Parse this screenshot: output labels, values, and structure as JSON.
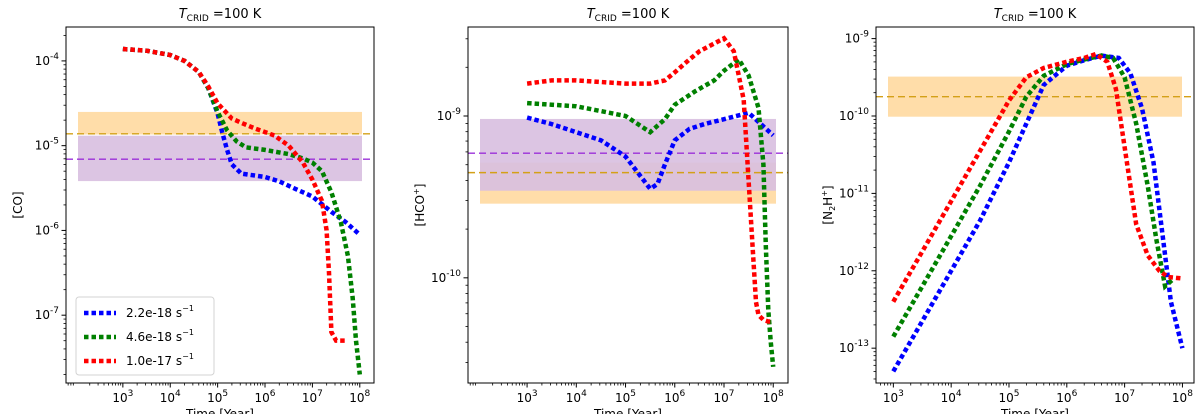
{
  "chart_data": [
    {
      "type": "line",
      "title_var": "T",
      "title_sub": "CRID",
      "title_rest": " =100 K",
      "xlabel": "Time [Year]",
      "ylabel": "[CO]",
      "xscale": "log",
      "yscale": "log",
      "xlim": [
        1.8,
        8.3
      ],
      "ylim": [
        -7.8,
        -3.6
      ],
      "xticks": [
        3,
        4,
        5,
        6,
        7,
        8
      ],
      "yticks": [
        -7,
        -6,
        -5,
        -4
      ],
      "legend": {
        "position": "lower-left",
        "entries": [
          "2.2e-18 s",
          "4.6e-18 s",
          "1.0e-17 s"
        ],
        "unit_sup": "−1"
      },
      "bands": [
        {
          "low": -4.75,
          "high": -4.72,
          "line": -4.86,
          "fill": "#ffd9a0",
          "line_color": "#d4a017"
        },
        {
          "low": -5.3,
          "high": -5.0,
          "line": -5.16,
          "fill": "#d8bfe0",
          "line_color": "#9b30d9"
        }
      ],
      "series": [
        {
          "name": "2.2e-18 s",
          "color": "#0000ff",
          "x": [
            3,
            3.5,
            4,
            4.3,
            4.6,
            4.8,
            5,
            5.1,
            5.2,
            5.3,
            5.5,
            6,
            6.3,
            6.6,
            7,
            7.4,
            7.7,
            8
          ],
          "y": [
            -3.86,
            -3.88,
            -3.93,
            -4.0,
            -4.13,
            -4.32,
            -4.62,
            -4.85,
            -5.05,
            -5.22,
            -5.33,
            -5.37,
            -5.42,
            -5.5,
            -5.6,
            -5.78,
            -5.9,
            -6.05
          ]
        },
        {
          "name": "4.6e-18 s",
          "color": "#008000",
          "x": [
            3,
            3.5,
            4,
            4.3,
            4.6,
            4.8,
            5,
            5.2,
            5.4,
            5.6,
            6,
            6.5,
            6.8,
            7,
            7.2,
            7.4,
            7.6,
            7.75,
            7.85,
            7.92,
            8
          ],
          "y": [
            -3.86,
            -3.88,
            -3.93,
            -4.0,
            -4.13,
            -4.32,
            -4.6,
            -4.82,
            -4.95,
            -5.02,
            -5.05,
            -5.1,
            -5.15,
            -5.2,
            -5.3,
            -5.55,
            -5.9,
            -6.3,
            -6.8,
            -7.3,
            -7.7
          ]
        },
        {
          "name": "1.0e-17 s",
          "color": "#ff0000",
          "x": [
            3,
            3.5,
            4,
            4.3,
            4.6,
            4.8,
            5,
            5.3,
            5.5,
            5.8,
            6.2,
            6.5,
            6.8,
            7,
            7.2,
            7.3,
            7.35,
            7.4,
            7.5,
            7.6,
            7.7
          ],
          "y": [
            -3.86,
            -3.88,
            -3.93,
            -4.0,
            -4.13,
            -4.3,
            -4.5,
            -4.68,
            -4.73,
            -4.8,
            -4.88,
            -5.0,
            -5.2,
            -5.4,
            -5.65,
            -6.0,
            -6.5,
            -7.2,
            -7.3,
            -7.3,
            -7.3
          ]
        }
      ]
    },
    {
      "type": "line",
      "title_var": "T",
      "title_sub": "CRID",
      "title_rest": " =100 K",
      "xlabel": "Time [Year]",
      "ylabel_base": "[HCO",
      "ylabel_sup": "+",
      "ylabel_end": "]",
      "xscale": "log",
      "yscale": "log",
      "xlim": [
        1.8,
        8.3
      ],
      "ylim": [
        -10.65,
        -8.45
      ],
      "xticks": [
        3,
        4,
        5,
        6,
        7,
        8
      ],
      "yticks": [
        -10,
        -9
      ],
      "bands": [
        {
          "low": -9.48,
          "high": -9.35,
          "line": -9.35,
          "fill": "#ffd9a0",
          "line_color": "#d4a017"
        },
        {
          "low": -9.4,
          "high": -9.08,
          "line": -9.23,
          "fill": "#d8bfe0",
          "line_color": "#9b30d9"
        }
      ],
      "series": [
        {
          "name": "2.2e-18 s",
          "color": "#0000ff",
          "x": [
            3,
            3.5,
            4,
            4.5,
            5,
            5.3,
            5.5,
            5.65,
            5.8,
            6,
            6.3,
            6.6,
            7,
            7.5,
            8
          ],
          "y": [
            -9.01,
            -9.05,
            -9.1,
            -9.15,
            -9.25,
            -9.37,
            -9.45,
            -9.42,
            -9.3,
            -9.15,
            -9.08,
            -9.05,
            -9.02,
            -8.98,
            -9.12
          ]
        },
        {
          "name": "4.6e-18 s",
          "color": "#008000",
          "x": [
            3,
            3.5,
            4,
            4.5,
            5,
            5.3,
            5.5,
            5.8,
            6,
            6.4,
            6.8,
            7,
            7.3,
            7.5,
            7.7,
            7.8,
            7.85,
            7.9,
            7.95,
            8.0
          ],
          "y": [
            -8.92,
            -8.93,
            -8.94,
            -8.97,
            -9.0,
            -9.06,
            -9.1,
            -9.02,
            -8.93,
            -8.85,
            -8.78,
            -8.72,
            -8.65,
            -8.75,
            -8.95,
            -9.3,
            -9.8,
            -10.2,
            -10.4,
            -10.55
          ]
        },
        {
          "name": "1.0e-17 s",
          "color": "#ff0000",
          "x": [
            3,
            3.5,
            4,
            4.5,
            5,
            5.5,
            5.8,
            6,
            6.3,
            6.5,
            7,
            7.2,
            7.4,
            7.5,
            7.6,
            7.65,
            7.7,
            7.8,
            7.9,
            8.0
          ],
          "y": [
            -8.8,
            -8.78,
            -8.78,
            -8.79,
            -8.8,
            -8.8,
            -8.78,
            -8.73,
            -8.65,
            -8.6,
            -8.52,
            -8.6,
            -8.9,
            -9.4,
            -9.9,
            -10.15,
            -10.23,
            -10.26,
            -10.27,
            -10.27
          ]
        }
      ]
    },
    {
      "type": "line",
      "title_var": "T",
      "title_sub": "CRID",
      "title_rest": " =100 K",
      "xlabel": "Time [Year]",
      "ylabel_base": "[N",
      "ylabel_sub": "2",
      "ylabel_mid": "H",
      "ylabel_sup": "+",
      "ylabel_end": "]",
      "xscale": "log",
      "yscale": "log",
      "xlim": [
        2.7,
        8.2
      ],
      "ylim": [
        -13.45,
        -8.85
      ],
      "xticks": [
        3,
        4,
        5,
        6,
        7,
        8
      ],
      "yticks": [
        -13,
        -12,
        -11,
        -10,
        -9
      ],
      "bands": [
        {
          "low": -9.88,
          "high": -9.62,
          "line": -9.75,
          "fill": "#ffd9a0",
          "line_color": "#d4a017"
        }
      ],
      "series": [
        {
          "name": "2.2e-18 s",
          "color": "#0000ff",
          "x": [
            3,
            3.5,
            4,
            4.5,
            5,
            5.3,
            5.6,
            6,
            6.3,
            6.6,
            6.9,
            7.1,
            7.3,
            7.5,
            7.65,
            7.8,
            8.0
          ],
          "y": [
            -13.3,
            -12.65,
            -12.0,
            -11.35,
            -10.6,
            -10.1,
            -9.6,
            -9.35,
            -9.28,
            -9.22,
            -9.25,
            -9.45,
            -9.9,
            -10.6,
            -11.5,
            -12.4,
            -13.0
          ]
        },
        {
          "name": "4.6e-18 s",
          "color": "#008000",
          "x": [
            3,
            3.5,
            4,
            4.5,
            5,
            5.3,
            5.6,
            6,
            6.3,
            6.6,
            6.8,
            7.0,
            7.2,
            7.4,
            7.55,
            7.7,
            7.85
          ],
          "y": [
            -12.85,
            -12.2,
            -11.55,
            -10.9,
            -10.2,
            -9.75,
            -9.48,
            -9.33,
            -9.27,
            -9.22,
            -9.25,
            -9.5,
            -10.1,
            -10.9,
            -11.6,
            -12.2,
            -12.1
          ]
        },
        {
          "name": "1.0e-17 s",
          "color": "#ff0000",
          "x": [
            3,
            3.5,
            4,
            4.5,
            5,
            5.3,
            5.6,
            6,
            6.3,
            6.5,
            6.7,
            6.85,
            7.0,
            7.2,
            7.4,
            7.6,
            7.75,
            8.0
          ],
          "y": [
            -12.4,
            -11.75,
            -11.1,
            -10.45,
            -9.8,
            -9.5,
            -9.38,
            -9.3,
            -9.25,
            -9.2,
            -9.3,
            -9.65,
            -10.4,
            -11.4,
            -11.8,
            -12.0,
            -12.08,
            -12.1
          ]
        }
      ]
    }
  ]
}
